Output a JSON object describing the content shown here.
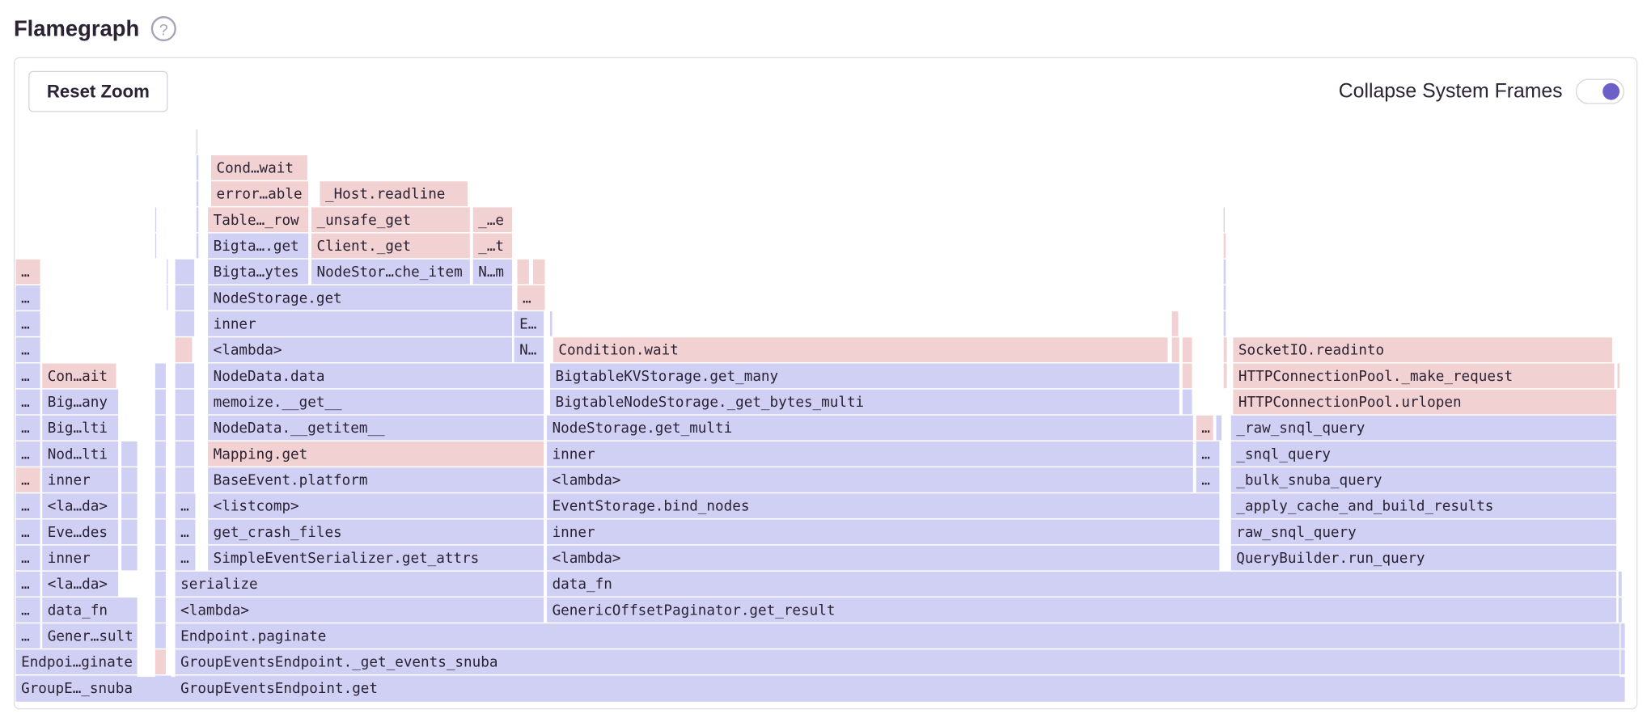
{
  "header": {
    "title": "Flamegraph",
    "help": "?"
  },
  "toolbar": {
    "reset_button": "Reset Zoom",
    "toggle_label": "Collapse System Frames",
    "toggle_on": true
  },
  "frames": [
    {
      "label": "GroupE…_snuba"
    },
    {
      "label": "GroupEventsEndpoint.get"
    },
    {
      "label": "Endpoi…ginate"
    },
    {
      "label": "GroupEventsEndpoint._get_events_snuba"
    },
    {
      "label": "…"
    },
    {
      "label": "Gener…sult"
    },
    {
      "label": "Endpoint.paginate"
    },
    {
      "label": "…"
    },
    {
      "label": "data_fn"
    },
    {
      "label": "<lambda>"
    },
    {
      "label": "GenericOffsetPaginator.get_result"
    },
    {
      "label": "…"
    },
    {
      "label": "<la…da>"
    },
    {
      "label": "serialize"
    },
    {
      "label": "data_fn"
    },
    {
      "label": "…"
    },
    {
      "label": "inner"
    },
    {
      "label": "…"
    },
    {
      "label": "SimpleEventSerializer.get_attrs"
    },
    {
      "label": "<lambda>"
    },
    {
      "label": "QueryBuilder.run_query"
    },
    {
      "label": "…"
    },
    {
      "label": "Eve…des"
    },
    {
      "label": "…"
    },
    {
      "label": "get_crash_files"
    },
    {
      "label": "inner"
    },
    {
      "label": "raw_snql_query"
    },
    {
      "label": "…"
    },
    {
      "label": "<la…da>"
    },
    {
      "label": "…"
    },
    {
      "label": "<listcomp>"
    },
    {
      "label": "EventStorage.bind_nodes"
    },
    {
      "label": "_apply_cache_and_build_results"
    },
    {
      "label": "…"
    },
    {
      "label": "inner"
    },
    {
      "label": "BaseEvent.platform"
    },
    {
      "label": "<lambda>"
    },
    {
      "label": "…"
    },
    {
      "label": "_bulk_snuba_query"
    },
    {
      "label": "…"
    },
    {
      "label": "Nod…lti"
    },
    {
      "label": "Mapping.get"
    },
    {
      "label": "inner"
    },
    {
      "label": "…"
    },
    {
      "label": "_snql_query"
    },
    {
      "label": "…"
    },
    {
      "label": "Big…lti"
    },
    {
      "label": "NodeData.__getitem__"
    },
    {
      "label": "NodeStorage.get_multi"
    },
    {
      "label": "…"
    },
    {
      "label": "_raw_snql_query"
    },
    {
      "label": "…"
    },
    {
      "label": "Big…any"
    },
    {
      "label": "memoize.__get__"
    },
    {
      "label": "BigtableNodeStorage._get_bytes_multi"
    },
    {
      "label": "HTTPConnectionPool.urlopen"
    },
    {
      "label": "…"
    },
    {
      "label": "Con…ait"
    },
    {
      "label": "NodeData.data"
    },
    {
      "label": "BigtableKVStorage.get_many"
    },
    {
      "label": "HTTPConnectionPool._make_request"
    },
    {
      "label": "…"
    },
    {
      "label": "<lambda>"
    },
    {
      "label": "N…"
    },
    {
      "label": "Condition.wait"
    },
    {
      "label": "SocketIO.readinto"
    },
    {
      "label": "…"
    },
    {
      "label": "inner"
    },
    {
      "label": "E…"
    },
    {
      "label": "…"
    },
    {
      "label": "NodeStorage.get"
    },
    {
      "label": "…"
    },
    {
      "label": "…"
    },
    {
      "label": "Bigta…ytes"
    },
    {
      "label": "NodeStor…che_item"
    },
    {
      "label": "N…m"
    },
    {
      "label": "Bigta….get"
    },
    {
      "label": "Client._get"
    },
    {
      "label": "_…t"
    },
    {
      "label": "Table…_row"
    },
    {
      "label": "_unsafe_get"
    },
    {
      "label": "_…e"
    },
    {
      "label": "error…able"
    },
    {
      "label": "_Host.readline"
    },
    {
      "label": "Cond…wait"
    }
  ]
}
